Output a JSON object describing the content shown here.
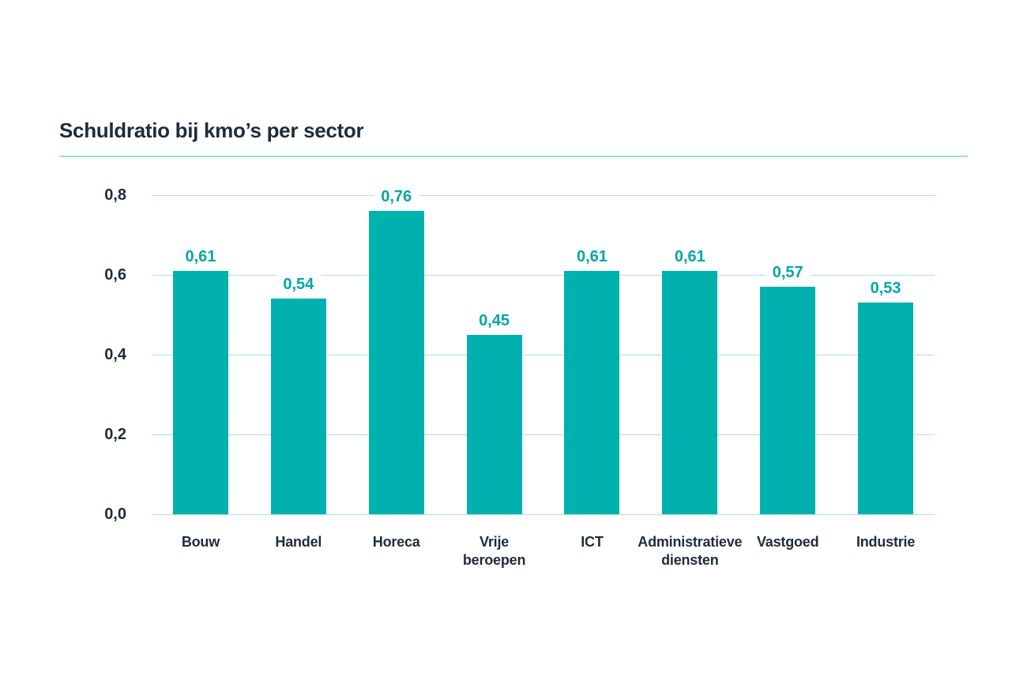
{
  "chart_data": {
    "type": "bar",
    "title": "Schuldratio bij kmo’s per sector",
    "categories": [
      "Bouw",
      "Handel",
      "Horeca",
      "Vrije\nberoepen",
      "ICT",
      "Administratieve\ndiensten",
      "Vastgoed",
      "Industrie"
    ],
    "values": [
      0.61,
      0.54,
      0.76,
      0.45,
      0.61,
      0.61,
      0.57,
      0.53
    ],
    "value_labels": [
      "0,61",
      "0,54",
      "0,76",
      "0,45",
      "0,61",
      "0,61",
      "0,57",
      "0,53"
    ],
    "xlabel": "",
    "ylabel": "",
    "ylim": [
      0,
      0.8
    ],
    "yticks": [
      {
        "value": 0.8,
        "label": "0,8"
      },
      {
        "value": 0.6,
        "label": "0,6"
      },
      {
        "value": 0.4,
        "label": "0,4"
      },
      {
        "value": 0.2,
        "label": "0,2"
      },
      {
        "value": 0.0,
        "label": "0,0"
      }
    ],
    "grid": "horizontal",
    "legend": "none",
    "colors": {
      "bar": "#00B1AD",
      "value_label": "#00A6AB",
      "gridline": "#A5E3E5",
      "title_rule": "#9DDFE1",
      "text": "#1E2C3B",
      "background": "#FFFFFF"
    }
  }
}
